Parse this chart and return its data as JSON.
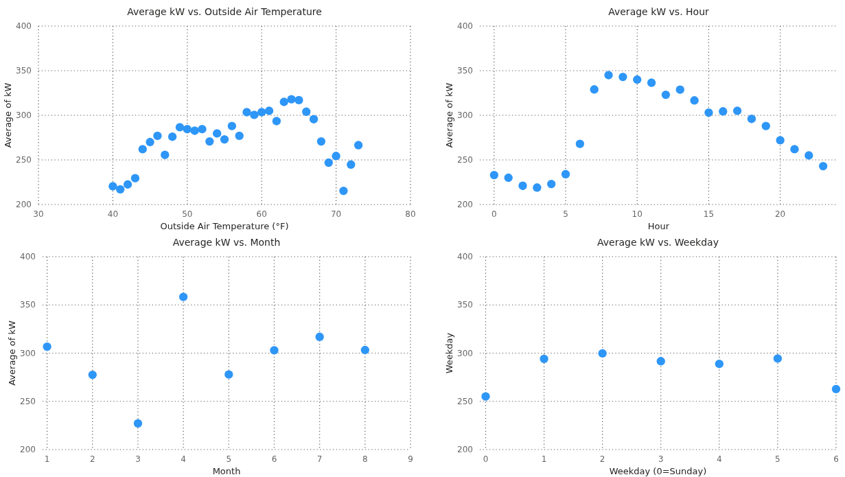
{
  "chart_data": [
    {
      "type": "scatter",
      "title": "Average kW vs. Outside Air Temperature",
      "xlabel": "Outside Air Temperature (°F)",
      "ylabel": "Average of kW",
      "xlim": [
        30,
        80
      ],
      "xticks": [
        30,
        40,
        50,
        60,
        70,
        80
      ],
      "ylim": [
        200,
        400
      ],
      "yticks": [
        200,
        250,
        300,
        350,
        400
      ],
      "grid": true,
      "marker": "circle",
      "series": [
        {
          "color": "#2e96f7",
          "x": [
            40,
            41,
            42,
            43,
            44,
            45,
            46,
            47,
            48,
            49,
            50,
            51,
            52,
            53,
            54,
            55,
            56,
            57,
            58,
            59,
            60,
            61,
            62,
            63,
            64,
            65,
            66,
            67,
            68,
            69,
            70,
            71,
            72,
            73
          ],
          "values": [
            220.5,
            217,
            222.5,
            229.5,
            262,
            270,
            277,
            255.6,
            276,
            286.6,
            284.5,
            282.7,
            284.5,
            270.7,
            279.7,
            273,
            288,
            277,
            303.5,
            300.5,
            303.5,
            305,
            293.5,
            315,
            318,
            317,
            304,
            295.6,
            270.7,
            246.9,
            254.4,
            215.3,
            244.8,
            266.5
          ]
        }
      ]
    },
    {
      "type": "scatter",
      "title": "Average kW vs. Hour",
      "xlabel": "Hour",
      "ylabel": "Average of kW",
      "xlim": [
        -1,
        24
      ],
      "xticks": [
        0,
        5,
        10,
        15,
        20
      ],
      "ylim": [
        200,
        400
      ],
      "yticks": [
        200,
        250,
        300,
        350,
        400
      ],
      "grid": true,
      "marker": "circle",
      "series": [
        {
          "color": "#2e96f7",
          "x": [
            0,
            1,
            2,
            3,
            4,
            5,
            6,
            7,
            8,
            9,
            10,
            11,
            12,
            13,
            14,
            15,
            16,
            17,
            18,
            19,
            20,
            21,
            22,
            23
          ],
          "values": [
            233,
            230,
            221,
            219,
            223,
            234,
            268,
            329,
            345,
            343,
            340,
            336.5,
            323,
            328.7,
            316.7,
            303,
            304.4,
            305,
            296,
            288,
            272,
            262,
            255,
            243
          ]
        }
      ]
    },
    {
      "type": "scatter",
      "title": "Average kW vs. Month",
      "xlabel": "Month",
      "ylabel": "Average of kW",
      "xlim": [
        0.9,
        9
      ],
      "xticks": [
        1,
        2,
        3,
        4,
        5,
        6,
        7,
        8,
        9
      ],
      "ylim": [
        200,
        400
      ],
      "yticks": [
        200,
        250,
        300,
        350,
        400
      ],
      "grid": true,
      "marker": "circle",
      "series": [
        {
          "color": "#2e96f7",
          "x": [
            1,
            2,
            3,
            4,
            5,
            6,
            7,
            8
          ],
          "values": [
            306.7,
            277.5,
            227.1,
            358.3,
            277.8,
            302.9,
            316.9,
            303.2
          ]
        }
      ]
    },
    {
      "type": "scatter",
      "title": "Average kW vs. Weekday",
      "xlabel": "Weekday (0=Sunday)",
      "ylabel": "Weekday",
      "xlim": [
        -0.1,
        6
      ],
      "xticks": [
        0,
        1,
        2,
        3,
        4,
        5,
        6
      ],
      "ylim": [
        200,
        400
      ],
      "yticks": [
        200,
        250,
        300,
        350,
        400
      ],
      "grid": true,
      "marker": "circle",
      "series": [
        {
          "color": "#2e96f7",
          "x": [
            0,
            1,
            2,
            3,
            4,
            5,
            6
          ],
          "values": [
            255,
            294,
            299.7,
            291.6,
            288.8,
            294.4,
            262.7
          ]
        }
      ]
    }
  ]
}
